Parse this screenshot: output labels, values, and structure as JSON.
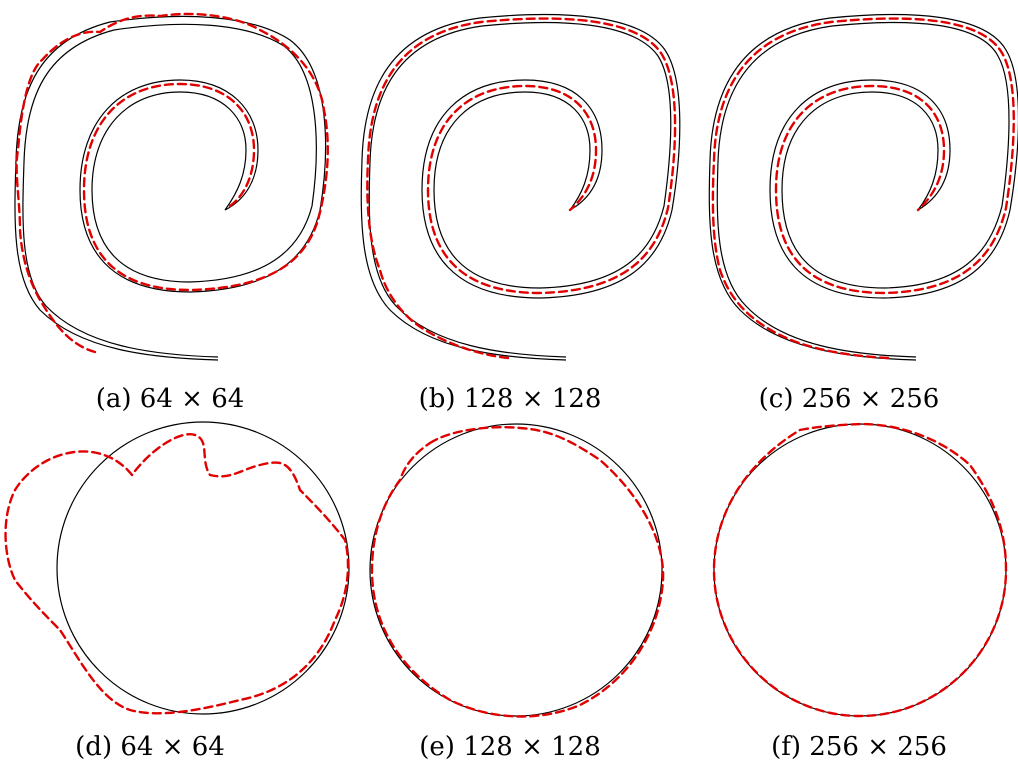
{
  "figure": {
    "captions": [
      {
        "label": "(a)",
        "text": "64 × 64"
      },
      {
        "label": "(b)",
        "text": "128 × 128"
      },
      {
        "label": "(c)",
        "text": "256 × 256"
      },
      {
        "label": "(d)",
        "text": "64 × 64"
      },
      {
        "label": "(e)",
        "text": "128 × 128"
      },
      {
        "label": "(f)",
        "text": "256 × 256"
      }
    ],
    "colors": {
      "exact": "#000000",
      "approx": "#e00000"
    }
  }
}
